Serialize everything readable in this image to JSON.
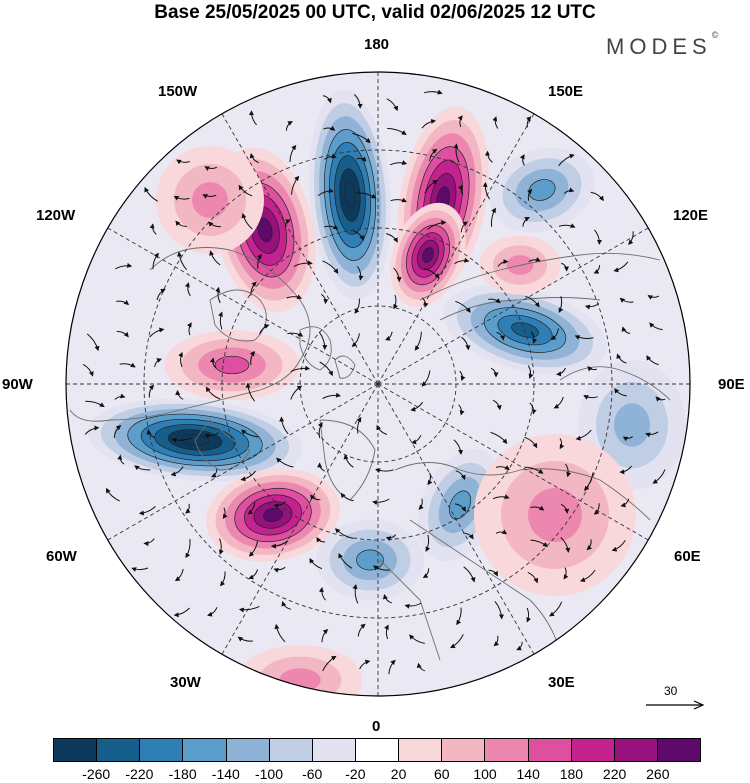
{
  "title": "Base 25/05/2025 00 UTC, valid 02/06/2025 12 UTC",
  "brand": "MODES",
  "brand_mark": "©",
  "longitude_labels": {
    "lon180": "180",
    "lon150W": "150W",
    "lon150E": "150E",
    "lon120W": "120W",
    "lon120E": "120E",
    "lon90W": "90W",
    "lon90E": "90E",
    "lon60W": "60W",
    "lon60E": "60E",
    "lon30W": "30W",
    "lon30E": "30E",
    "lon0": "0"
  },
  "reference_vector": {
    "label": "30"
  },
  "colorbar": {
    "colors": [
      "#0d3a5c",
      "#165f8c",
      "#2f7fb6",
      "#5b9ecb",
      "#8fb3d6",
      "#bfcde5",
      "#e3e2f1",
      "#ffffff",
      "#f9d8dc",
      "#f3b6c3",
      "#ec87b0",
      "#df4f9f",
      "#c4238f",
      "#96117c",
      "#5d0a6a"
    ],
    "ticks": [
      "-260",
      "-220",
      "-180",
      "-140",
      "-100",
      "-60",
      "-20",
      "20",
      "60",
      "100",
      "140",
      "180",
      "220",
      "260"
    ]
  },
  "anomaly_centers": [
    {
      "id": "A1",
      "sign": "neg",
      "value": -280
    },
    {
      "id": "A2",
      "sign": "pos",
      "value": 250
    },
    {
      "id": "A3",
      "sign": "pos",
      "value": 240
    },
    {
      "id": "A4",
      "sign": "pos",
      "value": 260
    },
    {
      "id": "A5",
      "sign": "neg",
      "value": -140
    },
    {
      "id": "A6",
      "sign": "neg",
      "value": -210
    },
    {
      "id": "A7",
      "sign": "pos",
      "value": 150
    },
    {
      "id": "A8",
      "sign": "neg",
      "value": -280
    },
    {
      "id": "A9",
      "sign": "pos",
      "value": 240
    },
    {
      "id": "A10",
      "sign": "neg",
      "value": -150
    },
    {
      "id": "A11",
      "sign": "pos",
      "value": 110
    },
    {
      "id": "A12",
      "sign": "neg",
      "value": -110
    },
    {
      "id": "A13",
      "sign": "pos",
      "value": 110
    },
    {
      "id": "A14",
      "sign": "neg",
      "value": -130
    },
    {
      "id": "A15",
      "sign": "pos",
      "value": 80
    },
    {
      "id": "A16",
      "sign": "pos",
      "value": 100
    }
  ]
}
